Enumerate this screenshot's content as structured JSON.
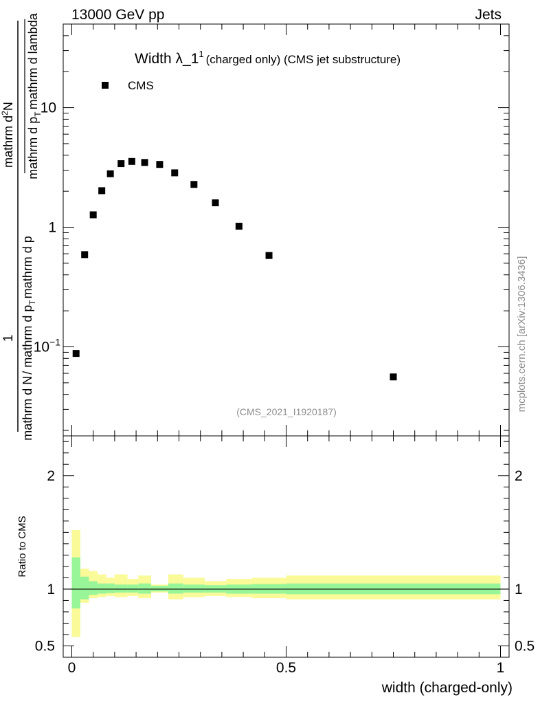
{
  "header": {
    "energy_label": "13000 GeV pp",
    "category_label": "Jets"
  },
  "watermark": {
    "analysis_id": "(CMS_2021_I1920187)",
    "source_label": "mcplots.cern.ch [arXiv:1306.3436]"
  },
  "chart_data": [
    {
      "type": "scatter",
      "panel": "main",
      "title_main": "Width λ_1",
      "title_sup": "1",
      "title_rest": "(charged only) (CMS jet substructure)",
      "ylabel": "1/N dN/(dp_T dλ) (as printed: mathrm d N ... mathrm d lambda)",
      "ylabel_num1": "1",
      "ylabel_den1": "mathrm d N",
      "ylabel_den_mid": "/ mathrm d p",
      "ylabel_den_sub": "T",
      "ylabel_den_end": "mathrm d p",
      "ylabel_num2": "mathrm d",
      "ylabel_num2_sup": "2",
      "ylabel_num2_end": "N",
      "ylabel_den2": "mathrm d p",
      "ylabel_den2_sub": "T",
      "ylabel_den2_end": "mathrm d lambda",
      "yscale": "log",
      "ylim": [
        0.018,
        50
      ],
      "xlim": [
        -0.02,
        1.02
      ],
      "yticks_labeled": [
        {
          "value": 0.1,
          "label": "10",
          "sup": "−1"
        },
        {
          "value": 1,
          "label": "1",
          "sup": ""
        },
        {
          "value": 10,
          "label": "10",
          "sup": ""
        }
      ],
      "legend": {
        "position": "top-left",
        "entries": [
          {
            "name": "CMS",
            "marker": "square"
          }
        ]
      },
      "series": [
        {
          "name": "CMS",
          "x": [
            0.01,
            0.03,
            0.05,
            0.07,
            0.09,
            0.115,
            0.14,
            0.17,
            0.205,
            0.24,
            0.285,
            0.335,
            0.39,
            0.46,
            0.75
          ],
          "y": [
            0.088,
            0.59,
            1.27,
            2.02,
            2.8,
            3.4,
            3.55,
            3.48,
            3.35,
            2.85,
            2.28,
            1.6,
            1.02,
            0.58,
            0.056
          ]
        }
      ]
    },
    {
      "type": "area",
      "panel": "ratio",
      "ylabel": "Ratio to CMS",
      "xlabel": "width (charged-only)",
      "ylim": [
        0.4,
        2.35
      ],
      "xlim": [
        -0.02,
        1.02
      ],
      "yticks": [
        0.5,
        1,
        2
      ],
      "ytick_labels": [
        "0.5",
        "1",
        "2"
      ],
      "xticks": [
        0,
        0.5,
        1
      ],
      "xtick_labels": [
        "0",
        "0.5",
        "1"
      ],
      "reference_line": 1,
      "bands": [
        {
          "x0": 0.0,
          "x1": 0.02,
          "inner": [
            0.83,
            1.28
          ],
          "outer": [
            0.58,
            1.52
          ]
        },
        {
          "x0": 0.02,
          "x1": 0.04,
          "inner": [
            0.91,
            1.11
          ],
          "outer": [
            0.88,
            1.18
          ]
        },
        {
          "x0": 0.04,
          "x1": 0.06,
          "inner": [
            0.95,
            1.07
          ],
          "outer": [
            0.92,
            1.16
          ]
        },
        {
          "x0": 0.06,
          "x1": 0.08,
          "inner": [
            0.96,
            1.05
          ],
          "outer": [
            0.93,
            1.13
          ]
        },
        {
          "x0": 0.08,
          "x1": 0.1,
          "inner": [
            0.965,
            1.05
          ],
          "outer": [
            0.94,
            1.1
          ]
        },
        {
          "x0": 0.1,
          "x1": 0.13,
          "inner": [
            0.97,
            1.04
          ],
          "outer": [
            0.93,
            1.13
          ]
        },
        {
          "x0": 0.13,
          "x1": 0.155,
          "inner": [
            0.97,
            1.04
          ],
          "outer": [
            0.94,
            1.09
          ]
        },
        {
          "x0": 0.155,
          "x1": 0.185,
          "inner": [
            0.96,
            1.05
          ],
          "outer": [
            0.92,
            1.12
          ]
        },
        {
          "x0": 0.185,
          "x1": 0.225,
          "inner": [
            0.98,
            1.03
          ],
          "outer": [
            0.97,
            1.04
          ]
        },
        {
          "x0": 0.225,
          "x1": 0.26,
          "inner": [
            0.96,
            1.05
          ],
          "outer": [
            0.91,
            1.13
          ]
        },
        {
          "x0": 0.26,
          "x1": 0.31,
          "inner": [
            0.97,
            1.04
          ],
          "outer": [
            0.93,
            1.1
          ]
        },
        {
          "x0": 0.31,
          "x1": 0.36,
          "inner": [
            0.97,
            1.035
          ],
          "outer": [
            0.94,
            1.07
          ]
        },
        {
          "x0": 0.36,
          "x1": 0.42,
          "inner": [
            0.96,
            1.04
          ],
          "outer": [
            0.93,
            1.09
          ]
        },
        {
          "x0": 0.42,
          "x1": 0.5,
          "inner": [
            0.96,
            1.045
          ],
          "outer": [
            0.92,
            1.1
          ]
        },
        {
          "x0": 0.5,
          "x1": 1.0,
          "inner": [
            0.955,
            1.05
          ],
          "outer": [
            0.91,
            1.12
          ]
        }
      ],
      "colors": {
        "inner": "#98f598",
        "outer": "#fafa99",
        "line": "#000000",
        "marker": "#000000"
      }
    }
  ]
}
